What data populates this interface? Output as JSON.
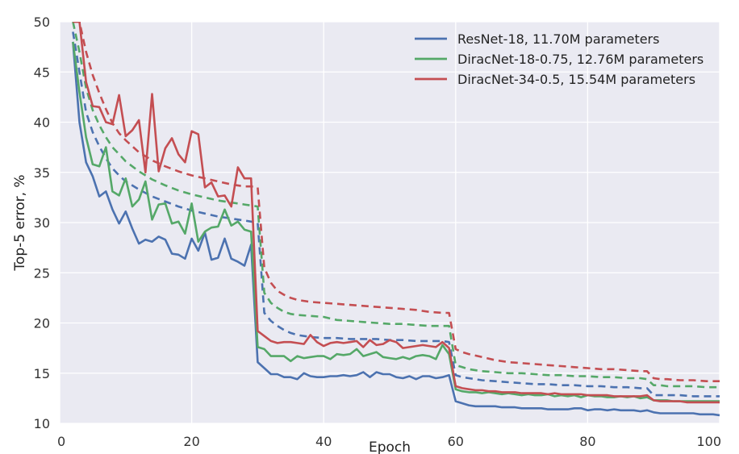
{
  "chart_data": {
    "type": "line",
    "title": "",
    "xlabel": "Epoch",
    "ylabel": "Top-5 error, %",
    "xlim": [
      0,
      100
    ],
    "ylim": [
      10,
      50
    ],
    "xticks": [
      0,
      20,
      40,
      60,
      80,
      100
    ],
    "yticks": [
      10,
      15,
      20,
      25,
      30,
      35,
      40,
      45,
      50
    ],
    "grid": true,
    "legend_position": "top-right",
    "series": [
      {
        "name": "ResNet-18, 11.70M parameters",
        "color": "#4C72B0",
        "validation": {
          "x": [
            2,
            3,
            4,
            5,
            6,
            7,
            8,
            9,
            10,
            11,
            12,
            13,
            14,
            15,
            16,
            17,
            18,
            19,
            20,
            21,
            22,
            23,
            24,
            25,
            26,
            27,
            28,
            29,
            30,
            31,
            32,
            33,
            34,
            35,
            36,
            37,
            38,
            39,
            40,
            41,
            42,
            43,
            44,
            45,
            46,
            47,
            48,
            49,
            50,
            51,
            52,
            53,
            54,
            55,
            56,
            57,
            58,
            59,
            60,
            61,
            62,
            63,
            64,
            65,
            66,
            67,
            68,
            69,
            70,
            71,
            72,
            73,
            74,
            75,
            76,
            77,
            78,
            79,
            80,
            81,
            82,
            83,
            84,
            85,
            86,
            87,
            88,
            89,
            90,
            91,
            92,
            93,
            94,
            95,
            96,
            97,
            98,
            99,
            100
          ],
          "y": [
            48,
            40,
            36,
            34.6,
            32.6,
            33.1,
            31.3,
            29.9,
            31.1,
            29.4,
            27.9,
            28.3,
            28.1,
            28.6,
            28.3,
            26.9,
            26.8,
            26.4,
            28.4,
            27.2,
            29,
            26.3,
            26.5,
            28.4,
            26.4,
            26.1,
            25.7,
            27.8,
            16.1,
            15.5,
            14.9,
            14.9,
            14.6,
            14.6,
            14.4,
            15,
            14.7,
            14.6,
            14.6,
            14.7,
            14.7,
            14.8,
            14.7,
            14.8,
            15.1,
            14.6,
            15.1,
            14.9,
            14.9,
            14.6,
            14.5,
            14.7,
            14.4,
            14.7,
            14.7,
            14.5,
            14.6,
            14.8,
            12.2,
            12,
            11.8,
            11.7,
            11.7,
            11.7,
            11.7,
            11.6,
            11.6,
            11.6,
            11.5,
            11.5,
            11.5,
            11.5,
            11.4,
            11.4,
            11.4,
            11.4,
            11.5,
            11.5,
            11.3,
            11.4,
            11.4,
            11.3,
            11.4,
            11.3,
            11.3,
            11.3,
            11.2,
            11.3,
            11.1,
            11,
            11,
            11,
            11,
            11,
            11,
            10.9,
            10.9,
            10.9,
            10.8
          ]
        },
        "training": {
          "x": [
            2,
            3,
            4,
            5,
            6,
            7,
            8,
            9,
            10,
            12,
            14,
            16,
            18,
            20,
            22,
            24,
            26,
            28,
            29,
            30,
            31,
            32,
            33,
            34,
            35,
            36,
            38,
            40,
            42,
            44,
            46,
            48,
            50,
            52,
            54,
            56,
            58,
            59,
            60,
            61,
            62,
            64,
            66,
            68,
            70,
            72,
            74,
            76,
            78,
            80,
            82,
            84,
            86,
            88,
            89,
            90,
            91,
            92,
            94,
            96,
            98,
            100
          ],
          "y": [
            49,
            45,
            41,
            39,
            37.6,
            36.4,
            35.4,
            34.7,
            34.1,
            33.3,
            32.6,
            32.1,
            31.6,
            31.2,
            30.9,
            30.6,
            30.4,
            30.2,
            30.1,
            30.0,
            21.0,
            20.2,
            19.7,
            19.3,
            19.0,
            18.8,
            18.6,
            18.5,
            18.5,
            18.4,
            18.4,
            18.4,
            18.3,
            18.3,
            18.2,
            18.2,
            18.2,
            18.1,
            14.8,
            14.6,
            14.5,
            14.3,
            14.2,
            14.1,
            14.0,
            13.9,
            13.9,
            13.8,
            13.8,
            13.7,
            13.7,
            13.6,
            13.6,
            13.5,
            13.5,
            12.8,
            12.8,
            12.8,
            12.8,
            12.7,
            12.7,
            12.7
          ]
        }
      },
      {
        "name": "DiracNet-18-0.75, 12.76M parameters",
        "color": "#55A868",
        "validation": {
          "x": [
            2,
            3,
            4,
            5,
            6,
            7,
            8,
            9,
            10,
            11,
            12,
            13,
            14,
            15,
            16,
            17,
            18,
            19,
            20,
            21,
            22,
            23,
            24,
            25,
            26,
            27,
            28,
            29,
            30,
            31,
            32,
            33,
            34,
            35,
            36,
            37,
            38,
            39,
            40,
            41,
            42,
            43,
            44,
            45,
            46,
            47,
            48,
            49,
            50,
            51,
            52,
            53,
            54,
            55,
            56,
            57,
            58,
            59,
            60,
            61,
            62,
            63,
            64,
            65,
            66,
            67,
            68,
            69,
            70,
            71,
            72,
            73,
            74,
            75,
            76,
            77,
            78,
            79,
            80,
            81,
            82,
            83,
            84,
            85,
            86,
            87,
            88,
            89,
            90,
            91,
            92,
            93,
            94,
            95,
            96,
            97,
            98,
            99,
            100
          ],
          "y": [
            48,
            43,
            38.5,
            35.8,
            35.6,
            37.5,
            33.1,
            32.7,
            34.4,
            31.6,
            32.3,
            34.1,
            30.3,
            31.8,
            31.9,
            29.9,
            30.1,
            28.9,
            31.9,
            28.1,
            29.1,
            29.5,
            29.6,
            31.3,
            29.7,
            30.1,
            29.3,
            29.1,
            17.6,
            17.4,
            16.7,
            16.7,
            16.7,
            16.2,
            16.7,
            16.5,
            16.6,
            16.7,
            16.7,
            16.4,
            16.9,
            16.8,
            16.9,
            17.4,
            16.7,
            16.9,
            17.1,
            16.6,
            16.5,
            16.4,
            16.6,
            16.4,
            16.7,
            16.8,
            16.7,
            16.4,
            17.8,
            16.9,
            13.4,
            13.2,
            13.1,
            13.1,
            13.0,
            13.1,
            13.0,
            12.9,
            13.0,
            12.9,
            12.8,
            12.9,
            12.8,
            12.8,
            12.9,
            12.7,
            12.8,
            12.7,
            12.8,
            12.6,
            12.8,
            12.7,
            12.7,
            12.6,
            12.6,
            12.7,
            12.6,
            12.7,
            12.5,
            12.6,
            12.3,
            12.3,
            12.3,
            12.2,
            12.2,
            12.2,
            12.2,
            12.2,
            12.2,
            12.2,
            12.2
          ]
        },
        "training": {
          "x": [
            2,
            3,
            4,
            5,
            6,
            7,
            8,
            9,
            10,
            12,
            14,
            16,
            18,
            20,
            22,
            24,
            26,
            28,
            29,
            30,
            31,
            32,
            33,
            34,
            35,
            36,
            38,
            40,
            42,
            44,
            46,
            48,
            50,
            52,
            54,
            56,
            58,
            59,
            60,
            61,
            62,
            64,
            66,
            68,
            70,
            72,
            74,
            76,
            78,
            80,
            82,
            84,
            86,
            88,
            89,
            90,
            91,
            92,
            94,
            96,
            98,
            100
          ],
          "y": [
            50,
            47,
            43.4,
            41.2,
            39.7,
            38.5,
            37.5,
            36.8,
            36.1,
            35.1,
            34.3,
            33.7,
            33.2,
            32.8,
            32.5,
            32.2,
            32.0,
            31.8,
            31.7,
            31.6,
            23.0,
            22.0,
            21.5,
            21.1,
            20.9,
            20.8,
            20.7,
            20.6,
            20.3,
            20.2,
            20.1,
            20.0,
            19.9,
            19.9,
            19.8,
            19.7,
            19.7,
            19.7,
            15.8,
            15.6,
            15.4,
            15.2,
            15.1,
            15.0,
            15.0,
            14.9,
            14.8,
            14.8,
            14.7,
            14.7,
            14.6,
            14.6,
            14.5,
            14.5,
            14.4,
            13.8,
            13.8,
            13.7,
            13.7,
            13.7,
            13.6,
            13.6
          ]
        }
      },
      {
        "name": "DiracNet-34-0.5, 15.54M parameters",
        "color": "#C44E52",
        "validation": {
          "x": [
            2,
            3,
            4,
            5,
            6,
            7,
            8,
            9,
            10,
            11,
            12,
            13,
            14,
            15,
            16,
            17,
            18,
            19,
            20,
            21,
            22,
            23,
            24,
            25,
            26,
            27,
            28,
            29,
            30,
            31,
            32,
            33,
            34,
            35,
            36,
            37,
            38,
            39,
            40,
            41,
            42,
            43,
            44,
            45,
            46,
            47,
            48,
            49,
            50,
            51,
            52,
            53,
            54,
            55,
            56,
            57,
            58,
            59,
            60,
            61,
            62,
            63,
            64,
            65,
            66,
            67,
            68,
            69,
            70,
            71,
            72,
            73,
            74,
            75,
            76,
            77,
            78,
            79,
            80,
            81,
            82,
            83,
            84,
            85,
            86,
            87,
            88,
            89,
            90,
            91,
            92,
            93,
            94,
            95,
            96,
            97,
            98,
            99,
            100
          ],
          "y": [
            50,
            50,
            44,
            41.6,
            41.5,
            40.0,
            39.8,
            42.7,
            38.6,
            39.2,
            40.2,
            35.0,
            42.8,
            35.1,
            37.4,
            38.4,
            36.8,
            36.0,
            39.1,
            38.8,
            33.5,
            34.0,
            32.6,
            32.7,
            31.6,
            35.5,
            34.4,
            34.4,
            19.2,
            18.7,
            18.2,
            18.0,
            18.1,
            18.1,
            18.0,
            17.9,
            18.8,
            18.1,
            17.7,
            18.0,
            18.1,
            18.0,
            18.1,
            18.2,
            17.6,
            18.3,
            17.8,
            17.9,
            18.3,
            18.1,
            17.5,
            17.6,
            17.7,
            17.8,
            17.7,
            17.6,
            18.1,
            17.5,
            13.7,
            13.5,
            13.4,
            13.3,
            13.3,
            13.2,
            13.2,
            13.1,
            13.1,
            13.1,
            13.0,
            13.0,
            13.0,
            13.0,
            12.9,
            13.0,
            12.9,
            12.9,
            12.9,
            12.9,
            12.8,
            12.8,
            12.8,
            12.8,
            12.7,
            12.7,
            12.7,
            12.7,
            12.7,
            12.8,
            12.3,
            12.2,
            12.2,
            12.2,
            12.2,
            12.1,
            12.1,
            12.1,
            12.1,
            12.1,
            12.1
          ]
        },
        "training": {
          "x": [
            2,
            3,
            4,
            5,
            6,
            7,
            8,
            9,
            10,
            12,
            14,
            16,
            18,
            20,
            22,
            24,
            26,
            28,
            29,
            30,
            31,
            32,
            33,
            34,
            35,
            36,
            38,
            40,
            42,
            44,
            46,
            48,
            50,
            52,
            54,
            56,
            58,
            59,
            60,
            61,
            62,
            64,
            66,
            68,
            70,
            72,
            74,
            76,
            78,
            80,
            82,
            84,
            86,
            88,
            89,
            90,
            91,
            92,
            94,
            96,
            98,
            100
          ],
          "y": [
            50,
            50,
            47,
            44.7,
            42.9,
            41.3,
            39.9,
            38.9,
            38.2,
            37.0,
            36.2,
            35.6,
            35.1,
            34.7,
            34.4,
            34.1,
            33.8,
            33.6,
            33.6,
            33.5,
            25.5,
            24.0,
            23.2,
            22.8,
            22.5,
            22.3,
            22.1,
            22.0,
            21.9,
            21.8,
            21.7,
            21.6,
            21.5,
            21.4,
            21.3,
            21.1,
            21.0,
            21.0,
            17.4,
            17.1,
            16.9,
            16.6,
            16.3,
            16.1,
            16.0,
            15.9,
            15.8,
            15.7,
            15.6,
            15.5,
            15.4,
            15.4,
            15.3,
            15.2,
            15.2,
            14.5,
            14.4,
            14.4,
            14.3,
            14.3,
            14.2,
            14.2
          ]
        }
      }
    ]
  }
}
